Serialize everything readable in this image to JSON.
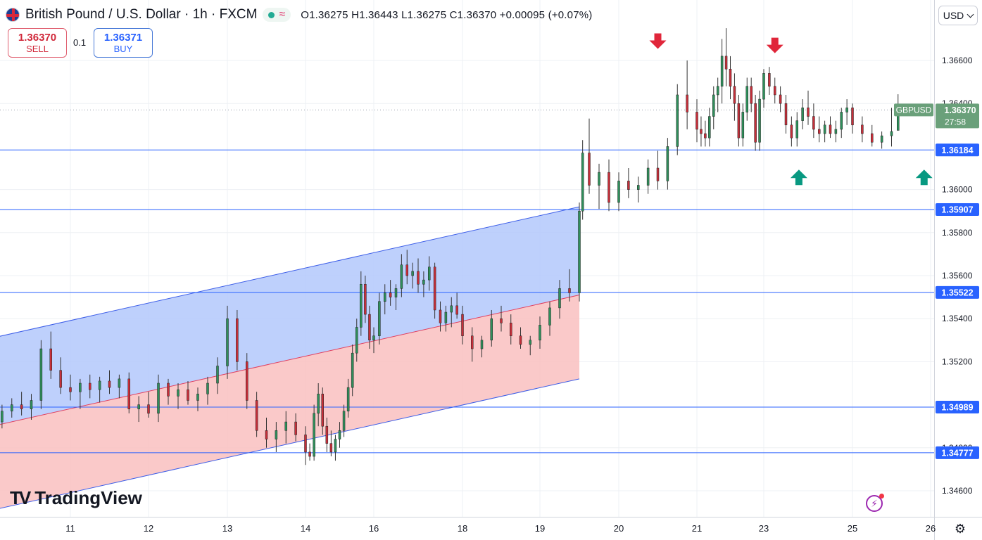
{
  "header": {
    "symbol_title": "British Pound / U.S. Dollar · 1h · FXCM",
    "ohlc": "O1.36275 H1.36443 L1.36275 C1.36370 +0.00095 (+0.07%)"
  },
  "trade": {
    "sell_price": "1.36370",
    "sell_label": "SELL",
    "quantity": "0.1",
    "buy_price": "1.36371",
    "buy_label": "BUY"
  },
  "currency": "USD",
  "branding": {
    "logo_text": "TradingView"
  },
  "colors": {
    "up": "#26a69a",
    "down": "#ef5350",
    "level_line": "#2962ff",
    "channel_upper_fill": "#b3c8fb",
    "channel_lower_fill": "#f9c0c0",
    "label_bg": "#2962ff",
    "current_price_bg": "#6aa07a",
    "arrow_down": "#e0263a",
    "arrow_up": "#089981"
  },
  "chart_data": {
    "type": "candlestick",
    "symbol": "GBPUSD",
    "timeframe": "1h",
    "x_ticks": [
      "11",
      "12",
      "13",
      "14",
      "16",
      "18",
      "19",
      "20",
      "21",
      "23",
      "25",
      "26"
    ],
    "y_ticks": [
      "1.34600",
      "1.34800",
      "1.35200",
      "1.35400",
      "1.35600",
      "1.35800",
      "1.36000",
      "1.36400",
      "1.36600"
    ],
    "y_range": [
      1.3451,
      1.3692
    ],
    "current_price": {
      "symbol_label": "GBPUSD",
      "value": "1.36370",
      "countdown": "27:58"
    },
    "horizontal_levels": [
      "1.36184",
      "1.35907",
      "1.35522",
      "1.34989",
      "1.34777"
    ],
    "channel": {
      "start_date": "Aug 9 18:00",
      "end_date": "Aug 19 12:00",
      "upper": [
        1.3529,
        1.3592
      ],
      "middle": [
        1.3488,
        1.3551
      ],
      "lower": [
        1.3449,
        1.3512
      ]
    },
    "markers": [
      {
        "type": "arrow-down",
        "date": "Aug 20 12:00",
        "price": 1.3668
      },
      {
        "type": "arrow-down",
        "date": "Aug 23 06:00",
        "price": 1.3666
      },
      {
        "type": "arrow-up",
        "date": "Aug 23 19:00",
        "price": 1.3606
      },
      {
        "type": "arrow-up",
        "date": "Aug 25 22:00",
        "price": 1.3606
      }
    ],
    "ohlc_series": [
      {
        "date": "Aug 9 18:00",
        "o": 1.3482,
        "h": 1.3487,
        "l": 1.3476,
        "c": 1.3484
      },
      {
        "date": "Aug 9 21:00",
        "o": 1.3484,
        "h": 1.349,
        "l": 1.348,
        "c": 1.3487
      },
      {
        "date": "Aug 10 00:00",
        "o": 1.3487,
        "h": 1.3495,
        "l": 1.3484,
        "c": 1.3492
      },
      {
        "date": "Aug 10 03:00",
        "o": 1.3492,
        "h": 1.35,
        "l": 1.3489,
        "c": 1.3497
      },
      {
        "date": "Aug 10 06:00",
        "o": 1.3497,
        "h": 1.3503,
        "l": 1.3494,
        "c": 1.35
      },
      {
        "date": "Aug 10 09:00",
        "o": 1.35,
        "h": 1.3506,
        "l": 1.3495,
        "c": 1.3498
      },
      {
        "date": "Aug 10 12:00",
        "o": 1.3498,
        "h": 1.3505,
        "l": 1.3493,
        "c": 1.3502
      },
      {
        "date": "Aug 10 15:00",
        "o": 1.3502,
        "h": 1.353,
        "l": 1.3498,
        "c": 1.3526
      },
      {
        "date": "Aug 10 18:00",
        "o": 1.3526,
        "h": 1.3534,
        "l": 1.3512,
        "c": 1.3516
      },
      {
        "date": "Aug 10 21:00",
        "o": 1.3516,
        "h": 1.3522,
        "l": 1.3505,
        "c": 1.3508
      },
      {
        "date": "Aug 11 00:00",
        "o": 1.3508,
        "h": 1.3514,
        "l": 1.3502,
        "c": 1.3506
      },
      {
        "date": "Aug 11 03:00",
        "o": 1.3506,
        "h": 1.3512,
        "l": 1.3498,
        "c": 1.351
      },
      {
        "date": "Aug 11 06:00",
        "o": 1.351,
        "h": 1.3514,
        "l": 1.3503,
        "c": 1.3507
      },
      {
        "date": "Aug 11 09:00",
        "o": 1.3507,
        "h": 1.3513,
        "l": 1.3501,
        "c": 1.3511
      },
      {
        "date": "Aug 11 12:00",
        "o": 1.3511,
        "h": 1.3516,
        "l": 1.3505,
        "c": 1.3508
      },
      {
        "date": "Aug 11 15:00",
        "o": 1.3508,
        "h": 1.3514,
        "l": 1.3503,
        "c": 1.3512
      },
      {
        "date": "Aug 11 18:00",
        "o": 1.3512,
        "h": 1.3515,
        "l": 1.3496,
        "c": 1.3498
      },
      {
        "date": "Aug 11 21:00",
        "o": 1.3498,
        "h": 1.3504,
        "l": 1.3492,
        "c": 1.35
      },
      {
        "date": "Aug 12 00:00",
        "o": 1.35,
        "h": 1.3506,
        "l": 1.3494,
        "c": 1.3496
      },
      {
        "date": "Aug 12 03:00",
        "o": 1.3496,
        "h": 1.3514,
        "l": 1.3492,
        "c": 1.351
      },
      {
        "date": "Aug 12 06:00",
        "o": 1.351,
        "h": 1.3512,
        "l": 1.35,
        "c": 1.3504
      },
      {
        "date": "Aug 12 09:00",
        "o": 1.3504,
        "h": 1.351,
        "l": 1.3498,
        "c": 1.3507
      },
      {
        "date": "Aug 12 12:00",
        "o": 1.3507,
        "h": 1.3511,
        "l": 1.35,
        "c": 1.3502
      },
      {
        "date": "Aug 12 15:00",
        "o": 1.3502,
        "h": 1.3508,
        "l": 1.3497,
        "c": 1.3505
      },
      {
        "date": "Aug 12 18:00",
        "o": 1.3505,
        "h": 1.3513,
        "l": 1.35,
        "c": 1.351
      },
      {
        "date": "Aug 12 21:00",
        "o": 1.351,
        "h": 1.3522,
        "l": 1.3505,
        "c": 1.3518
      },
      {
        "date": "Aug 13 00:00",
        "o": 1.3518,
        "h": 1.3546,
        "l": 1.3512,
        "c": 1.354
      },
      {
        "date": "Aug 13 03:00",
        "o": 1.354,
        "h": 1.3544,
        "l": 1.3516,
        "c": 1.352
      },
      {
        "date": "Aug 13 06:00",
        "o": 1.352,
        "h": 1.3524,
        "l": 1.3498,
        "c": 1.3502
      },
      {
        "date": "Aug 13 09:00",
        "o": 1.3502,
        "h": 1.3506,
        "l": 1.3485,
        "c": 1.3488
      },
      {
        "date": "Aug 13 12:00",
        "o": 1.3488,
        "h": 1.3494,
        "l": 1.348,
        "c": 1.3484
      },
      {
        "date": "Aug 13 15:00",
        "o": 1.3484,
        "h": 1.3492,
        "l": 1.3478,
        "c": 1.3488
      },
      {
        "date": "Aug 13 18:00",
        "o": 1.3488,
        "h": 1.3497,
        "l": 1.3482,
        "c": 1.3492
      },
      {
        "date": "Aug 13 21:00",
        "o": 1.3492,
        "h": 1.3496,
        "l": 1.3483,
        "c": 1.3486
      },
      {
        "date": "Aug 14 00:00",
        "o": 1.3486,
        "h": 1.349,
        "l": 1.3472,
        "c": 1.3478
      },
      {
        "date": "Aug 14 03:00",
        "o": 1.3478,
        "h": 1.3482,
        "l": 1.3474,
        "c": 1.3476
      },
      {
        "date": "Aug 14 06:00",
        "o": 1.3476,
        "h": 1.35,
        "l": 1.3474,
        "c": 1.3496
      },
      {
        "date": "Aug 14 09:00",
        "o": 1.3496,
        "h": 1.351,
        "l": 1.349,
        "c": 1.3505
      },
      {
        "date": "Aug 14 12:00",
        "o": 1.3505,
        "h": 1.3508,
        "l": 1.3486,
        "c": 1.349
      },
      {
        "date": "Aug 14 15:00",
        "o": 1.349,
        "h": 1.3494,
        "l": 1.3478,
        "c": 1.3482
      },
      {
        "date": "Aug 14 18:00",
        "o": 1.3482,
        "h": 1.3488,
        "l": 1.3476,
        "c": 1.3478
      },
      {
        "date": "Aug 14 21:00",
        "o": 1.3478,
        "h": 1.3486,
        "l": 1.3474,
        "c": 1.3484
      },
      {
        "date": "Aug 15 00:00",
        "o": 1.3484,
        "h": 1.3492,
        "l": 1.348,
        "c": 1.3488
      },
      {
        "date": "Aug 15 03:00",
        "o": 1.3488,
        "h": 1.35,
        "l": 1.3485,
        "c": 1.3497
      },
      {
        "date": "Aug 15 06:00",
        "o": 1.3497,
        "h": 1.3512,
        "l": 1.3494,
        "c": 1.3508
      },
      {
        "date": "Aug 15 09:00",
        "o": 1.3508,
        "h": 1.3528,
        "l": 1.3504,
        "c": 1.3524
      },
      {
        "date": "Aug 15 12:00",
        "o": 1.3524,
        "h": 1.354,
        "l": 1.352,
        "c": 1.3536
      },
      {
        "date": "Aug 15 15:00",
        "o": 1.3536,
        "h": 1.3562,
        "l": 1.3532,
        "c": 1.3556
      },
      {
        "date": "Aug 15 18:00",
        "o": 1.3556,
        "h": 1.356,
        "l": 1.3538,
        "c": 1.3542
      },
      {
        "date": "Aug 15 21:00",
        "o": 1.3542,
        "h": 1.3546,
        "l": 1.3526,
        "c": 1.353
      },
      {
        "date": "Aug 16 00:00",
        "o": 1.353,
        "h": 1.3536,
        "l": 1.3524,
        "c": 1.3532
      },
      {
        "date": "Aug 16 03:00",
        "o": 1.3532,
        "h": 1.3552,
        "l": 1.3528,
        "c": 1.3548
      },
      {
        "date": "Aug 16 06:00",
        "o": 1.3548,
        "h": 1.3556,
        "l": 1.3542,
        "c": 1.3552
      },
      {
        "date": "Aug 16 09:00",
        "o": 1.3552,
        "h": 1.3558,
        "l": 1.3546,
        "c": 1.355
      },
      {
        "date": "Aug 16 12:00",
        "o": 1.355,
        "h": 1.3556,
        "l": 1.3544,
        "c": 1.3554
      },
      {
        "date": "Aug 16 15:00",
        "o": 1.3554,
        "h": 1.357,
        "l": 1.355,
        "c": 1.3565
      },
      {
        "date": "Aug 16 18:00",
        "o": 1.3565,
        "h": 1.3572,
        "l": 1.3556,
        "c": 1.356
      },
      {
        "date": "Aug 16 21:00",
        "o": 1.356,
        "h": 1.3566,
        "l": 1.3554,
        "c": 1.3562
      },
      {
        "date": "Aug 17 00:00",
        "o": 1.3562,
        "h": 1.3568,
        "l": 1.3552,
        "c": 1.3556
      },
      {
        "date": "Aug 17 03:00",
        "o": 1.3556,
        "h": 1.3562,
        "l": 1.355,
        "c": 1.3558
      },
      {
        "date": "Aug 17 06:00",
        "o": 1.3558,
        "h": 1.3569,
        "l": 1.3553,
        "c": 1.3564
      },
      {
        "date": "Aug 17 09:00",
        "o": 1.3564,
        "h": 1.3566,
        "l": 1.354,
        "c": 1.3544
      },
      {
        "date": "Aug 17 12:00",
        "o": 1.3544,
        "h": 1.3548,
        "l": 1.3534,
        "c": 1.3538
      },
      {
        "date": "Aug 17 15:00",
        "o": 1.3538,
        "h": 1.3546,
        "l": 1.3534,
        "c": 1.3543
      },
      {
        "date": "Aug 17 18:00",
        "o": 1.3543,
        "h": 1.355,
        "l": 1.3536,
        "c": 1.3546
      },
      {
        "date": "Aug 17 21:00",
        "o": 1.3546,
        "h": 1.3552,
        "l": 1.354,
        "c": 1.3542
      },
      {
        "date": "Aug 18 00:00",
        "o": 1.3542,
        "h": 1.3546,
        "l": 1.3528,
        "c": 1.3532
      },
      {
        "date": "Aug 18 03:00",
        "o": 1.3532,
        "h": 1.3536,
        "l": 1.352,
        "c": 1.3526
      },
      {
        "date": "Aug 18 06:00",
        "o": 1.3526,
        "h": 1.3532,
        "l": 1.3522,
        "c": 1.353
      },
      {
        "date": "Aug 18 09:00",
        "o": 1.353,
        "h": 1.3544,
        "l": 1.3527,
        "c": 1.354
      },
      {
        "date": "Aug 18 12:00",
        "o": 1.354,
        "h": 1.3546,
        "l": 1.3534,
        "c": 1.3538
      },
      {
        "date": "Aug 18 15:00",
        "o": 1.3538,
        "h": 1.3542,
        "l": 1.3528,
        "c": 1.3532
      },
      {
        "date": "Aug 18 18:00",
        "o": 1.3532,
        "h": 1.3536,
        "l": 1.3526,
        "c": 1.3528
      },
      {
        "date": "Aug 18 21:00",
        "o": 1.3528,
        "h": 1.3532,
        "l": 1.3523,
        "c": 1.353
      },
      {
        "date": "Aug 19 00:00",
        "o": 1.353,
        "h": 1.3541,
        "l": 1.3526,
        "c": 1.3537
      },
      {
        "date": "Aug 19 03:00",
        "o": 1.3537,
        "h": 1.3548,
        "l": 1.3532,
        "c": 1.3545
      },
      {
        "date": "Aug 19 06:00",
        "o": 1.3545,
        "h": 1.3558,
        "l": 1.354,
        "c": 1.3554
      },
      {
        "date": "Aug 19 09:00",
        "o": 1.3554,
        "h": 1.3563,
        "l": 1.3548,
        "c": 1.3552
      },
      {
        "date": "Aug 19 12:00",
        "o": 1.3552,
        "h": 1.3594,
        "l": 1.3548,
        "c": 1.359
      },
      {
        "date": "Aug 19 13:00",
        "o": 1.359,
        "h": 1.3623,
        "l": 1.3586,
        "c": 1.3617
      },
      {
        "date": "Aug 19 15:00",
        "o": 1.3617,
        "h": 1.3633,
        "l": 1.3598,
        "c": 1.3602
      },
      {
        "date": "Aug 19 18:00",
        "o": 1.3602,
        "h": 1.3612,
        "l": 1.3591,
        "c": 1.3608
      },
      {
        "date": "Aug 19 21:00",
        "o": 1.3608,
        "h": 1.3614,
        "l": 1.359,
        "c": 1.3594
      },
      {
        "date": "Aug 20 00:00",
        "o": 1.3594,
        "h": 1.3608,
        "l": 1.359,
        "c": 1.3604
      },
      {
        "date": "Aug 20 03:00",
        "o": 1.3604,
        "h": 1.361,
        "l": 1.3596,
        "c": 1.36
      },
      {
        "date": "Aug 20 06:00",
        "o": 1.36,
        "h": 1.3606,
        "l": 1.3594,
        "c": 1.3602
      },
      {
        "date": "Aug 20 09:00",
        "o": 1.3602,
        "h": 1.3614,
        "l": 1.3598,
        "c": 1.361
      },
      {
        "date": "Aug 20 12:00",
        "o": 1.361,
        "h": 1.3618,
        "l": 1.36,
        "c": 1.3604
      },
      {
        "date": "Aug 20 15:00",
        "o": 1.3604,
        "h": 1.3624,
        "l": 1.36,
        "c": 1.362
      },
      {
        "date": "Aug 20 18:00",
        "o": 1.362,
        "h": 1.3649,
        "l": 1.3616,
        "c": 1.3644
      },
      {
        "date": "Aug 20 21:00",
        "o": 1.3644,
        "h": 1.366,
        "l": 1.3628,
        "c": 1.3636
      },
      {
        "date": "Aug 21 00:00",
        "o": 1.3636,
        "h": 1.3642,
        "l": 1.3622,
        "c": 1.3628
      },
      {
        "date": "Aug 21 03:00",
        "o": 1.3628,
        "h": 1.3634,
        "l": 1.362,
        "c": 1.3626
      },
      {
        "date": "Aug 21 06:00",
        "o": 1.3626,
        "h": 1.3632,
        "l": 1.362,
        "c": 1.3624
      },
      {
        "date": "Aug 21 09:00",
        "o": 1.3624,
        "h": 1.3638,
        "l": 1.362,
        "c": 1.3634
      },
      {
        "date": "Aug 21 12:00",
        "o": 1.3634,
        "h": 1.3648,
        "l": 1.3628,
        "c": 1.3644
      },
      {
        "date": "Aug 21 15:00",
        "o": 1.3644,
        "h": 1.3652,
        "l": 1.3636,
        "c": 1.3648
      },
      {
        "date": "Aug 21 18:00",
        "o": 1.3648,
        "h": 1.367,
        "l": 1.364,
        "c": 1.3662
      },
      {
        "date": "Aug 21 21:00",
        "o": 1.3662,
        "h": 1.3675,
        "l": 1.3648,
        "c": 1.3656
      },
      {
        "date": "Aug 22 00:00",
        "o": 1.3656,
        "h": 1.3662,
        "l": 1.3642,
        "c": 1.3648
      },
      {
        "date": "Aug 22 03:00",
        "o": 1.3648,
        "h": 1.3654,
        "l": 1.3632,
        "c": 1.364
      },
      {
        "date": "Aug 22 06:00",
        "o": 1.364,
        "h": 1.3644,
        "l": 1.362,
        "c": 1.3624
      },
      {
        "date": "Aug 22 09:00",
        "o": 1.3624,
        "h": 1.364,
        "l": 1.362,
        "c": 1.3636
      },
      {
        "date": "Aug 22 12:00",
        "o": 1.3636,
        "h": 1.3652,
        "l": 1.3632,
        "c": 1.3648
      },
      {
        "date": "Aug 22 15:00",
        "o": 1.3648,
        "h": 1.3652,
        "l": 1.3636,
        "c": 1.364
      },
      {
        "date": "Aug 22 18:00",
        "o": 1.364,
        "h": 1.3644,
        "l": 1.3618,
        "c": 1.3622
      },
      {
        "date": "Aug 22 21:00",
        "o": 1.3622,
        "h": 1.3646,
        "l": 1.3618,
        "c": 1.3642
      },
      {
        "date": "Aug 23 00:00",
        "o": 1.3642,
        "h": 1.3656,
        "l": 1.3638,
        "c": 1.3654
      },
      {
        "date": "Aug 23 03:00",
        "o": 1.3654,
        "h": 1.3657,
        "l": 1.3644,
        "c": 1.3648
      },
      {
        "date": "Aug 23 06:00",
        "o": 1.3648,
        "h": 1.3652,
        "l": 1.364,
        "c": 1.3644
      },
      {
        "date": "Aug 23 09:00",
        "o": 1.3644,
        "h": 1.3648,
        "l": 1.3636,
        "c": 1.364
      },
      {
        "date": "Aug 23 12:00",
        "o": 1.364,
        "h": 1.3644,
        "l": 1.3626,
        "c": 1.363
      },
      {
        "date": "Aug 23 15:00",
        "o": 1.363,
        "h": 1.3634,
        "l": 1.362,
        "c": 1.3624
      },
      {
        "date": "Aug 23 18:00",
        "o": 1.3624,
        "h": 1.3636,
        "l": 1.362,
        "c": 1.3632
      },
      {
        "date": "Aug 23 21:00",
        "o": 1.3632,
        "h": 1.3642,
        "l": 1.3628,
        "c": 1.3638
      },
      {
        "date": "Aug 24 00:00",
        "o": 1.3638,
        "h": 1.3646,
        "l": 1.363,
        "c": 1.3634
      },
      {
        "date": "Aug 24 03:00",
        "o": 1.3634,
        "h": 1.364,
        "l": 1.3624,
        "c": 1.3628
      },
      {
        "date": "Aug 24 06:00",
        "o": 1.3628,
        "h": 1.3634,
        "l": 1.3622,
        "c": 1.3626
      },
      {
        "date": "Aug 24 09:00",
        "o": 1.3626,
        "h": 1.3632,
        "l": 1.3622,
        "c": 1.363
      },
      {
        "date": "Aug 24 12:00",
        "o": 1.363,
        "h": 1.3634,
        "l": 1.3624,
        "c": 1.3626
      },
      {
        "date": "Aug 24 15:00",
        "o": 1.3626,
        "h": 1.3632,
        "l": 1.3622,
        "c": 1.3628
      },
      {
        "date": "Aug 24 18:00",
        "o": 1.3628,
        "h": 1.3638,
        "l": 1.3624,
        "c": 1.3636
      },
      {
        "date": "Aug 24 21:00",
        "o": 1.3636,
        "h": 1.3642,
        "l": 1.363,
        "c": 1.3638
      },
      {
        "date": "Aug 25 00:00",
        "o": 1.3638,
        "h": 1.364,
        "l": 1.3626,
        "c": 1.363
      },
      {
        "date": "Aug 25 03:00",
        "o": 1.363,
        "h": 1.3634,
        "l": 1.3622,
        "c": 1.3626
      },
      {
        "date": "Aug 25 06:00",
        "o": 1.3626,
        "h": 1.363,
        "l": 1.362,
        "c": 1.3622
      },
      {
        "date": "Aug 25 09:00",
        "o": 1.3622,
        "h": 1.3627,
        "l": 1.3619,
        "c": 1.3625
      },
      {
        "date": "Aug 25 12:00",
        "o": 1.3625,
        "h": 1.3638,
        "l": 1.362,
        "c": 1.3627
      },
      {
        "date": "Aug 25 14:00",
        "o": 1.36275,
        "h": 1.36443,
        "l": 1.36275,
        "c": 1.3637
      }
    ]
  }
}
